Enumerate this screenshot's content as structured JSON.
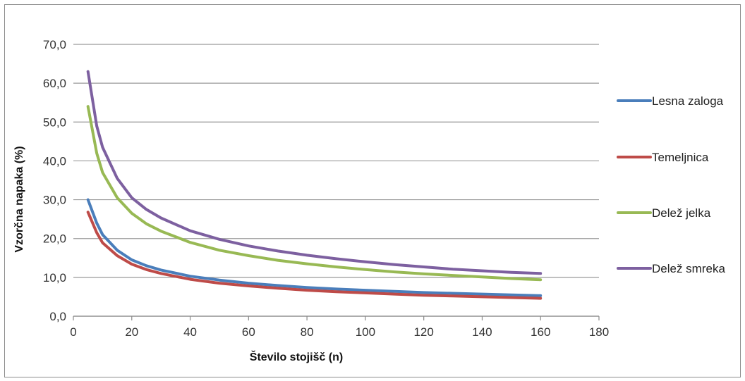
{
  "chart_data": {
    "type": "line",
    "xlabel": "Število stojišč (n)",
    "ylabel": "Vzorčna napaka (%)",
    "xlim": [
      0,
      180
    ],
    "ylim": [
      0,
      70
    ],
    "x_ticks": [
      "0",
      "20",
      "40",
      "60",
      "80",
      "100",
      "120",
      "140",
      "160",
      "180"
    ],
    "y_ticks": [
      "0,0",
      "10,0",
      "20,0",
      "30,0",
      "40,0",
      "50,0",
      "60,0",
      "70,0"
    ],
    "grid": "horizontal",
    "legend_position": "right",
    "x": [
      5,
      8,
      10,
      15,
      20,
      25,
      30,
      40,
      50,
      60,
      70,
      80,
      90,
      100,
      110,
      120,
      130,
      140,
      150,
      160
    ],
    "series": [
      {
        "name": "Lesna zaloga",
        "color": "#4a7ebb",
        "values": [
          30.0,
          24.0,
          21.0,
          17.0,
          14.5,
          13.0,
          11.9,
          10.3,
          9.3,
          8.5,
          7.9,
          7.4,
          7.0,
          6.7,
          6.4,
          6.1,
          5.9,
          5.7,
          5.5,
          5.3
        ]
      },
      {
        "name": "Temeljnica",
        "color": "#be4b48",
        "values": [
          26.8,
          21.5,
          18.9,
          15.6,
          13.4,
          12.0,
          11.0,
          9.5,
          8.5,
          7.8,
          7.2,
          6.7,
          6.3,
          6.0,
          5.7,
          5.4,
          5.2,
          5.0,
          4.8,
          4.6
        ]
      },
      {
        "name": "Delež jelka",
        "color": "#98b954",
        "values": [
          54.0,
          42.0,
          37.0,
          30.5,
          26.5,
          23.8,
          21.9,
          19.0,
          17.0,
          15.6,
          14.4,
          13.5,
          12.7,
          12.0,
          11.4,
          10.9,
          10.5,
          10.1,
          9.7,
          9.4
        ]
      },
      {
        "name": "Delež smreka",
        "color": "#7d60a0",
        "values": [
          63.0,
          49.0,
          43.5,
          35.5,
          30.5,
          27.5,
          25.3,
          22.0,
          19.8,
          18.1,
          16.8,
          15.7,
          14.8,
          14.0,
          13.3,
          12.7,
          12.1,
          11.7,
          11.3,
          11.0
        ]
      }
    ]
  }
}
